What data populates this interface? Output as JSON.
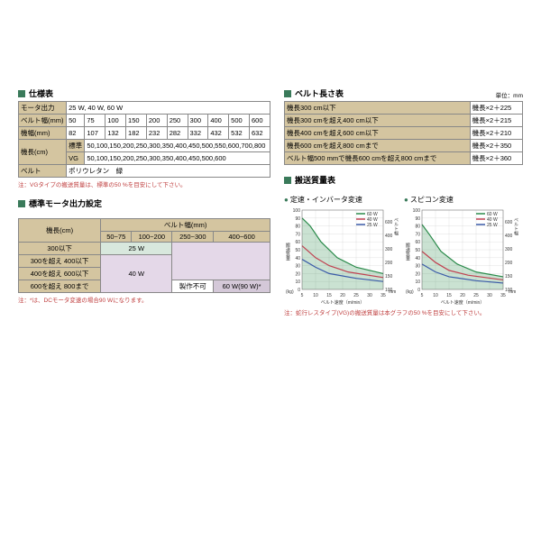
{
  "spec_table": {
    "title": "仕様表",
    "rows": [
      {
        "label": "モータ出力",
        "values": [
          "25 W, 40 W, 60 W"
        ],
        "span": 10
      },
      {
        "label": "ベルト幅(mm)",
        "values": [
          "50",
          "75",
          "100",
          "150",
          "200",
          "250",
          "300",
          "400",
          "500",
          "600"
        ]
      },
      {
        "label": "機幅(mm)",
        "values": [
          "82",
          "107",
          "132",
          "182",
          "232",
          "282",
          "332",
          "432",
          "532",
          "632"
        ]
      },
      {
        "label": "機長(cm)",
        "sub": "標準",
        "values": [
          "50,100,150,200,250,300,350,400,450,500,550,600,700,800"
        ],
        "span": 10
      },
      {
        "label": "",
        "sub": "VG",
        "values": [
          "50,100,150,200,250,300,350,400,450,500,600"
        ],
        "span": 10
      },
      {
        "label": "ベルト",
        "values": [
          "ポリウレタン　緑"
        ],
        "span": 10
      }
    ],
    "note": "注：VGタイプの搬送質量は、標準の50 %を目安にして下さい。"
  },
  "motor_table": {
    "title": "標準モータ出力設定",
    "col_header": "ベルト幅(mm)",
    "row_header": "機長(cm)",
    "cols": [
      "50~75",
      "100~200",
      "250~300",
      "400~600"
    ],
    "rows": [
      "300以下",
      "300を超え 400以下",
      "400を超え 600以下",
      "600を超え 800まで"
    ],
    "w25": "25 W",
    "w40": "40 W",
    "w60": "60 W(90 W)*",
    "nf": "製作不可",
    "note": "注：*は、DCモータ変速の場合90 Wになります。"
  },
  "length_table": {
    "title": "ベルト長さ表",
    "unit": "単位：mm",
    "rows": [
      [
        "機長300 cm以下",
        "機長×2＋225"
      ],
      [
        "機長300 cmを超え400 cm以下",
        "機長×2＋215"
      ],
      [
        "機長400 cmを超え600 cm以下",
        "機長×2＋210"
      ],
      [
        "機長600 cmを超え800 cmまで",
        "機長×2＋350"
      ],
      [
        "ベルト幅500 mmで機長600 cmを超え800 cmまで",
        "機長×2＋360"
      ]
    ]
  },
  "charts": {
    "title": "搬送質量表",
    "left_title": "定速・インバータ変速",
    "right_title": "スピコン変速",
    "xlabel": "ベルト速度（m/min）",
    "ylabel_l": "搬送質量",
    "ylabel_unit": "(kg)",
    "ylabel_r1": "ベルト幅によるスリップ限界値",
    "ylabel_r2": "ベルト幅",
    "ylabel_r_unit": "mm",
    "xlim": [
      5,
      35
    ],
    "ylim": [
      0,
      100
    ],
    "xticks": [
      5,
      10,
      15,
      20,
      25,
      30,
      35
    ],
    "yticks": [
      0,
      10,
      20,
      30,
      40,
      50,
      60,
      70,
      80,
      90,
      100
    ],
    "right_ticks": [
      100,
      150,
      200,
      300,
      400,
      600
    ],
    "series": [
      {
        "name": "60 W",
        "color": "#2a8a4a",
        "pts": [
          [
            5,
            90
          ],
          [
            8,
            80
          ],
          [
            12,
            60
          ],
          [
            18,
            40
          ],
          [
            25,
            28
          ],
          [
            35,
            20
          ]
        ]
      },
      {
        "name": "40 W",
        "color": "#c04050",
        "pts": [
          [
            5,
            55
          ],
          [
            10,
            40
          ],
          [
            15,
            30
          ],
          [
            22,
            22
          ],
          [
            35,
            15
          ]
        ]
      },
      {
        "name": "25 W",
        "color": "#3a5aa8",
        "pts": [
          [
            5,
            38
          ],
          [
            10,
            28
          ],
          [
            15,
            20
          ],
          [
            25,
            14
          ],
          [
            35,
            10
          ]
        ]
      }
    ],
    "series_r": [
      {
        "name": "60 W",
        "color": "#2a8a4a",
        "pts": [
          [
            5,
            82
          ],
          [
            8,
            68
          ],
          [
            12,
            48
          ],
          [
            18,
            32
          ],
          [
            25,
            22
          ],
          [
            35,
            16
          ]
        ]
      },
      {
        "name": "40 W",
        "color": "#c04050",
        "pts": [
          [
            5,
            48
          ],
          [
            10,
            34
          ],
          [
            15,
            24
          ],
          [
            22,
            18
          ],
          [
            35,
            12
          ]
        ]
      },
      {
        "name": "25 W",
        "color": "#3a5aa8",
        "pts": [
          [
            5,
            32
          ],
          [
            10,
            22
          ],
          [
            15,
            16
          ],
          [
            25,
            11
          ],
          [
            35,
            8
          ]
        ]
      }
    ],
    "note": "注：蛇行レスタイプ(VG)の搬送質量は本グラフの50 %を目安にして下さい。"
  }
}
